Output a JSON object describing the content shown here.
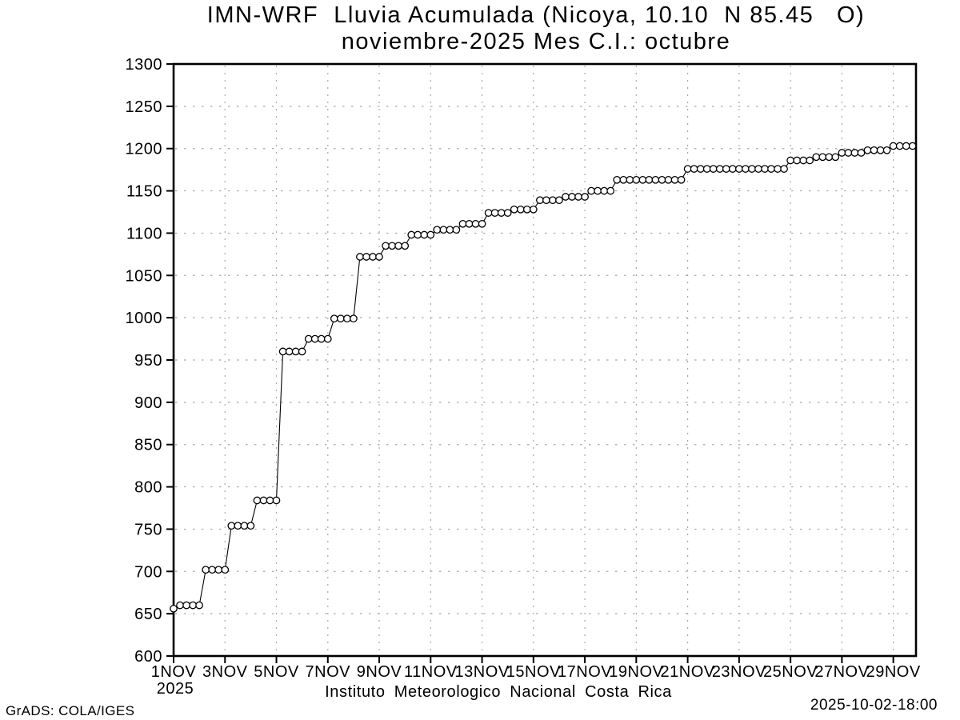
{
  "title": {
    "line1": "IMN-WRF  Lluvia Acumulada (Nicoya, 10.10  N 85.45   O)",
    "line2": "noviembre-2025 Mes C.I.: octubre"
  },
  "footer": {
    "institution": "Instituto Meteorologico Nacional Costa Rica",
    "grads_credit": "GrADS: COLA/IGES",
    "timestamp": "2025-10-02-18:00"
  },
  "chart_data": {
    "type": "line",
    "marker": "open-circle",
    "line_color": "#000000",
    "marker_fill": "#ffffff",
    "grid_color": "#a9a9a9",
    "background": "#ffffff",
    "grid": "dotted",
    "legend": "none",
    "ylim": [
      600,
      1300
    ],
    "y_ticks": [
      600,
      650,
      700,
      750,
      800,
      850,
      900,
      950,
      1000,
      1050,
      1100,
      1150,
      1200,
      1250,
      1300
    ],
    "x_axis": {
      "year_label": "2025",
      "tick_labels": [
        "1NOV",
        "3NOV",
        "5NOV",
        "7NOV",
        "9NOV",
        "11NOV",
        "13NOV",
        "15NOV",
        "17NOV",
        "19NOV",
        "21NOV",
        "23NOV",
        "25NOV",
        "27NOV",
        "29NOV"
      ],
      "tick_day_offsets": [
        0,
        2,
        4,
        6,
        8,
        10,
        12,
        14,
        16,
        18,
        20,
        22,
        24,
        26,
        28
      ],
      "days_span": 28.9
    },
    "series": {
      "name": "Lluvia Acumulada",
      "start_day_offset": 0,
      "time_step_days": 0.25,
      "values": [
        656,
        660,
        660,
        660,
        660,
        702,
        702,
        702,
        702,
        754,
        754,
        754,
        754,
        784,
        784,
        784,
        784,
        960,
        960,
        960,
        960,
        975,
        975,
        975,
        975,
        999,
        999,
        999,
        999,
        1072,
        1072,
        1072,
        1072,
        1085,
        1085,
        1085,
        1085,
        1098,
        1098,
        1098,
        1098,
        1104,
        1104,
        1104,
        1104,
        1111,
        1111,
        1111,
        1111,
        1124,
        1124,
        1124,
        1124,
        1128,
        1128,
        1128,
        1128,
        1139,
        1139,
        1139,
        1139,
        1143,
        1143,
        1143,
        1143,
        1150,
        1150,
        1150,
        1150,
        1163,
        1163,
        1163,
        1163,
        1163,
        1163,
        1163,
        1163,
        1163,
        1163,
        1163,
        1176,
        1176,
        1176,
        1176,
        1176,
        1176,
        1176,
        1176,
        1176,
        1176,
        1176,
        1176,
        1176,
        1176,
        1176,
        1176,
        1186,
        1186,
        1186,
        1186,
        1190,
        1190,
        1190,
        1190,
        1195,
        1195,
        1195,
        1195,
        1198,
        1198,
        1198,
        1198,
        1203,
        1203,
        1203,
        1203
      ]
    }
  }
}
